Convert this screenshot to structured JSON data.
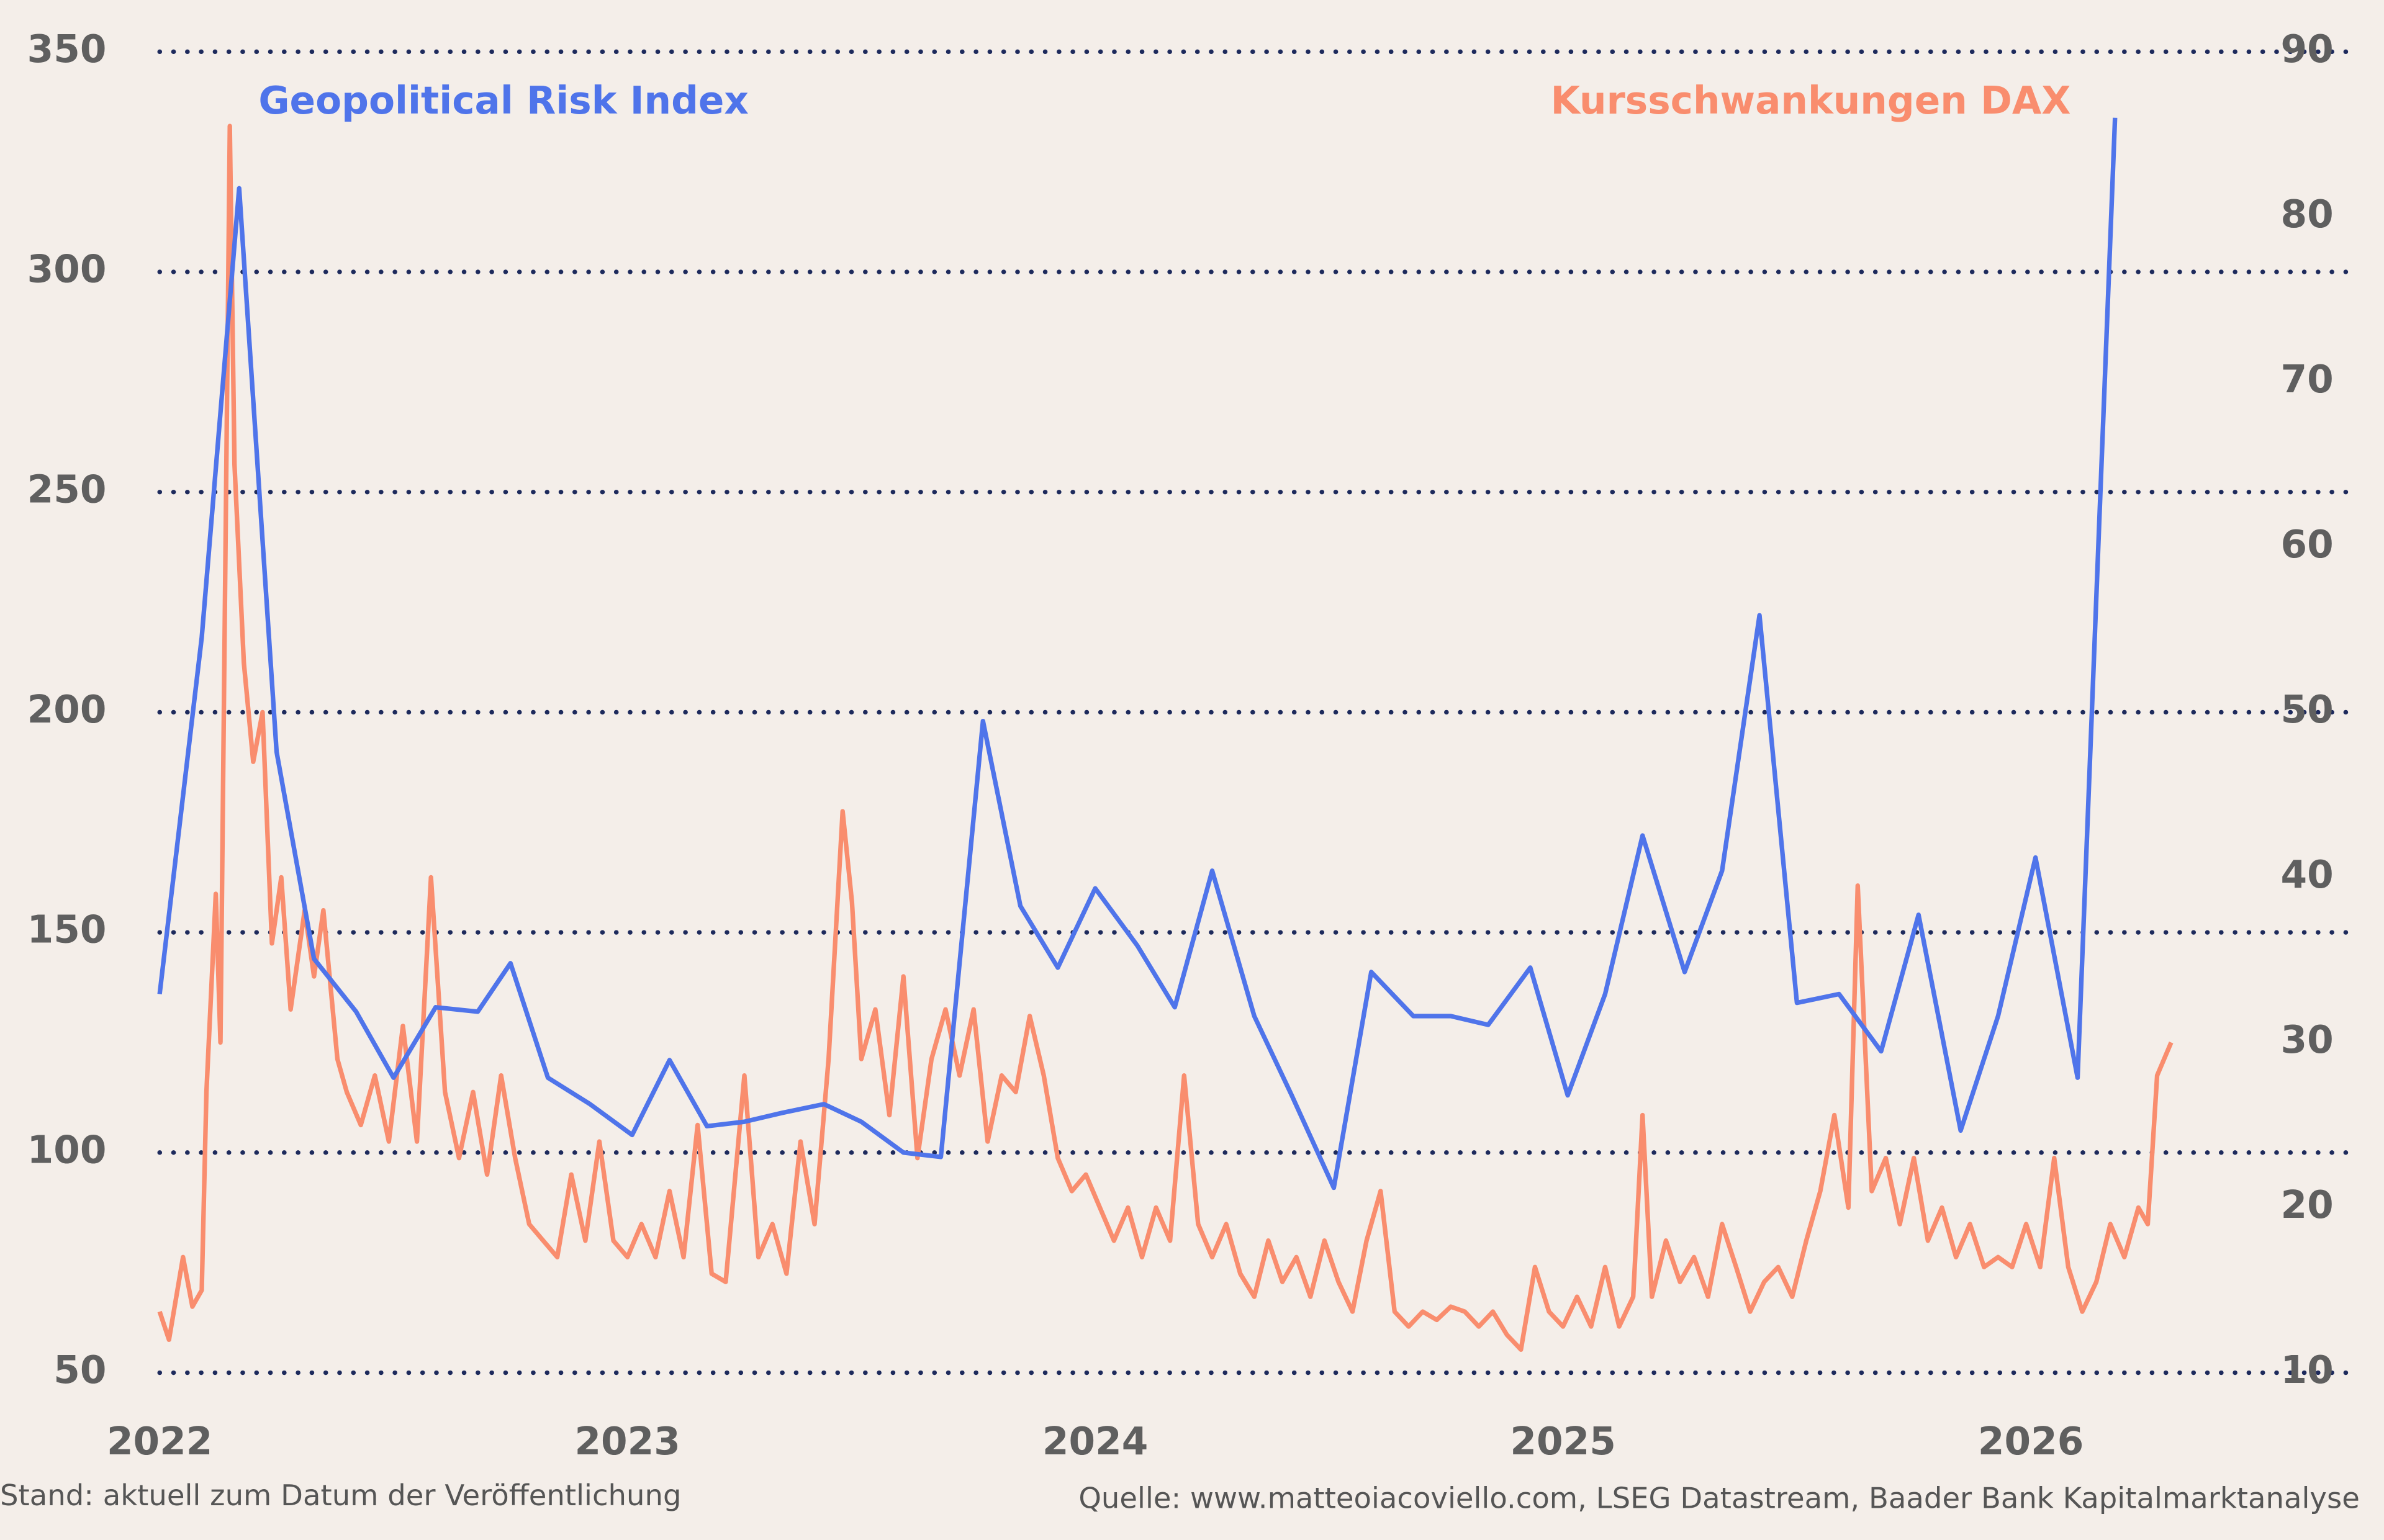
{
  "chart_data": {
    "type": "line",
    "xlim": [
      2022,
      2026.69
    ],
    "xticks": [
      2022,
      2023,
      2024,
      2025,
      2026
    ],
    "ylim": [
      50,
      350
    ],
    "yticks": [
      50,
      100,
      150,
      200,
      250,
      300,
      350
    ],
    "y2lim": [
      10,
      90
    ],
    "y2ticks": [
      10,
      20,
      30,
      40,
      50,
      60,
      70,
      80,
      90
    ],
    "grid": true,
    "footnote_left": "Stand: aktuell zum Datum der Veröffentlichung",
    "footnote_right": "Quelle: www.matteoiacoviello.com, LSEG Datastream, Baader Bank Kapitalmarktanalyse",
    "series": [
      {
        "name": "Geopolitical Risk Index",
        "color": "#4f74ea",
        "x": [
          2022.0,
          2022.09,
          2022.17,
          2022.25,
          2022.33,
          2022.42,
          2022.5,
          2022.59,
          2022.68,
          2022.75,
          2022.83,
          2022.92,
          2023.01,
          2023.09,
          2023.17,
          2023.25,
          2023.33,
          2023.42,
          2023.5,
          2023.59,
          2023.67,
          2023.76,
          2023.84,
          2023.92,
          2024.0,
          2024.09,
          2024.17,
          2024.25,
          2024.34,
          2024.42,
          2024.51,
          2024.59,
          2024.68,
          2024.76,
          2024.84,
          2024.93,
          2025.01,
          2025.09,
          2025.17,
          2025.26,
          2025.34,
          2025.42,
          2025.5,
          2025.59,
          2025.68,
          2025.76,
          2025.85,
          2025.93,
          2026.01,
          2026.1,
          2026.18
        ],
        "values": [
          136,
          217,
          319,
          191,
          144,
          132,
          117,
          133,
          132,
          143,
          117,
          111,
          104,
          121,
          106,
          107,
          109,
          111,
          107,
          100,
          99,
          198,
          156,
          142,
          160,
          147,
          133,
          164,
          131,
          113,
          92,
          141,
          131,
          131,
          129,
          142,
          113,
          136,
          172,
          141,
          164,
          222,
          134,
          136,
          123,
          154,
          105,
          131,
          167,
          117,
          335
        ]
      },
      {
        "name": "Kursschwankungen DAX",
        "color": "#f98d6e",
        "axis": "y2",
        "x": [
          2022.0,
          2022.02,
          2022.05,
          2022.07,
          2022.09,
          2022.1,
          2022.12,
          2022.13,
          2022.15,
          2022.16,
          2022.18,
          2022.2,
          2022.22,
          2022.24,
          2022.26,
          2022.28,
          2022.31,
          2022.33,
          2022.35,
          2022.38,
          2022.4,
          2022.43,
          2022.46,
          2022.49,
          2022.52,
          2022.55,
          2022.58,
          2022.61,
          2022.64,
          2022.67,
          2022.7,
          2022.73,
          2022.76,
          2022.79,
          2022.82,
          2022.85,
          2022.88,
          2022.91,
          2022.94,
          2022.97,
          2023.0,
          2023.03,
          2023.06,
          2023.09,
          2023.12,
          2023.15,
          2023.18,
          2023.21,
          2023.25,
          2023.28,
          2023.31,
          2023.34,
          2023.37,
          2023.4,
          2023.43,
          2023.46,
          2023.48,
          2023.5,
          2023.53,
          2023.56,
          2023.59,
          2023.62,
          2023.65,
          2023.68,
          2023.71,
          2023.74,
          2023.77,
          2023.8,
          2023.83,
          2023.86,
          2023.89,
          2023.92,
          2023.95,
          2023.98,
          2024.01,
          2024.04,
          2024.07,
          2024.1,
          2024.13,
          2024.16,
          2024.19,
          2024.22,
          2024.25,
          2024.28,
          2024.31,
          2024.34,
          2024.37,
          2024.4,
          2024.43,
          2024.46,
          2024.49,
          2024.52,
          2024.55,
          2024.58,
          2024.61,
          2024.64,
          2024.67,
          2024.7,
          2024.73,
          2024.76,
          2024.79,
          2024.82,
          2024.85,
          2024.88,
          2024.91,
          2024.94,
          2024.97,
          2025.0,
          2025.03,
          2025.06,
          2025.09,
          2025.12,
          2025.15,
          2025.17,
          2025.19,
          2025.22,
          2025.25,
          2025.28,
          2025.31,
          2025.34,
          2025.37,
          2025.4,
          2025.43,
          2025.46,
          2025.49,
          2025.52,
          2025.55,
          2025.58,
          2025.61,
          2025.63,
          2025.66,
          2025.69,
          2025.72,
          2025.75,
          2025.78,
          2025.81,
          2025.84,
          2025.87,
          2025.9,
          2025.93,
          2025.96,
          2025.99,
          2026.02,
          2026.05,
          2026.08,
          2026.11,
          2026.14,
          2026.17,
          2026.2,
          2026.23,
          2026.25,
          2026.27,
          2026.3
        ],
        "values": [
          13.7,
          12,
          17,
          14,
          15,
          27,
          39,
          30,
          85.5,
          65,
          53,
          47,
          50,
          36,
          40,
          32,
          38,
          34,
          38,
          29,
          27,
          25,
          28,
          24,
          31,
          24,
          40,
          27,
          23,
          27,
          22,
          28,
          23,
          19,
          18,
          17,
          22,
          18,
          24,
          18,
          17,
          19,
          17,
          21,
          17,
          25,
          16,
          15.5,
          28,
          17,
          19,
          16,
          24,
          19,
          29,
          44,
          38.5,
          29,
          32,
          25.6,
          34,
          23,
          29,
          32,
          28,
          32,
          24,
          28,
          27,
          31.6,
          28,
          23,
          21,
          22,
          20,
          18,
          20,
          17,
          20,
          18,
          28,
          19,
          17,
          19,
          16,
          14.6,
          18,
          15.5,
          17,
          14.6,
          18,
          15.5,
          13.7,
          18,
          21,
          13.7,
          12.8,
          13.7,
          13.2,
          14,
          13.7,
          12.8,
          13.7,
          12.3,
          11.4,
          16.4,
          13.7,
          12.8,
          14.6,
          12.8,
          16.4,
          12.8,
          14.6,
          25.6,
          14.6,
          18,
          15.5,
          17,
          14.6,
          19,
          16.4,
          13.7,
          15.5,
          16.4,
          14.6,
          18,
          21,
          25.6,
          20,
          39.5,
          21,
          23,
          19,
          23,
          18,
          20,
          17,
          19,
          16.4,
          17,
          16.4,
          19,
          16.4,
          23,
          16.4,
          13.7,
          15.5,
          19,
          17,
          20,
          19,
          28,
          30
        ]
      }
    ]
  }
}
